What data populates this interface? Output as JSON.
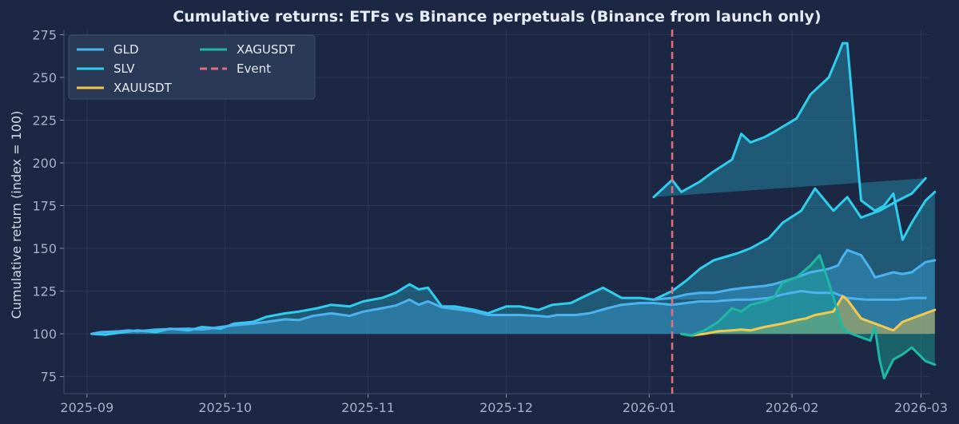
{
  "chart_data": {
    "type": "line",
    "title": "Cumulative returns: ETFs vs Binance perpetuals (Binance from launch only)",
    "xlabel": "",
    "ylabel": "Cumulative return (index = 100)",
    "x_ticks": [
      "2025-09",
      "2025-10",
      "2025-11",
      "2025-12",
      "2026-01",
      "2026-02",
      "2026-03"
    ],
    "y_ticks": [
      75,
      100,
      125,
      150,
      175,
      200,
      225,
      250,
      275
    ],
    "xlim": [
      "2025-08-27",
      "2026-03-03"
    ],
    "ylim": [
      65,
      278
    ],
    "baseline": 100,
    "grid": true,
    "legend_position": "top-left",
    "event": {
      "name": "Event",
      "date": "2026-01-06",
      "color": "#e36d7b"
    },
    "series": [
      {
        "name": "GLD",
        "color": "#4bb3f0",
        "points": [
          [
            "2025-09-02",
            100
          ],
          [
            "2025-09-04",
            101
          ],
          [
            "2025-09-08",
            101.5
          ],
          [
            "2025-09-10",
            102
          ],
          [
            "2025-09-12",
            101.5
          ],
          [
            "2025-09-16",
            102.5
          ],
          [
            "2025-09-19",
            102.8
          ],
          [
            "2025-09-23",
            103
          ],
          [
            "2025-09-26",
            102.5
          ],
          [
            "2025-09-30",
            104
          ],
          [
            "2025-10-03",
            105
          ],
          [
            "2025-10-07",
            106
          ],
          [
            "2025-10-10",
            107
          ],
          [
            "2025-10-14",
            108.5
          ],
          [
            "2025-10-17",
            108
          ],
          [
            "2025-10-20",
            110.5
          ],
          [
            "2025-10-24",
            112
          ],
          [
            "2025-10-28",
            110.5
          ],
          [
            "2025-10-31",
            113
          ],
          [
            "2025-11-04",
            115
          ],
          [
            "2025-11-07",
            116.5
          ],
          [
            "2025-11-10",
            120
          ],
          [
            "2025-11-12",
            117
          ],
          [
            "2025-11-14",
            119
          ],
          [
            "2025-11-17",
            115.5
          ],
          [
            "2025-11-20",
            114.5
          ],
          [
            "2025-11-24",
            113
          ],
          [
            "2025-11-27",
            111
          ],
          [
            "2025-12-01",
            111
          ],
          [
            "2025-12-04",
            111
          ],
          [
            "2025-12-08",
            110.5
          ],
          [
            "2025-12-10",
            110
          ],
          [
            "2025-12-12",
            111
          ],
          [
            "2025-12-16",
            111
          ],
          [
            "2025-12-19",
            112
          ],
          [
            "2025-12-23",
            115
          ],
          [
            "2025-12-26",
            117
          ],
          [
            "2025-12-30",
            118
          ],
          [
            "2026-01-02",
            118
          ],
          [
            "2026-01-06",
            117
          ],
          [
            "2026-01-09",
            118
          ],
          [
            "2026-01-12",
            119
          ],
          [
            "2026-01-15",
            119
          ],
          [
            "2026-01-20",
            120
          ],
          [
            "2026-01-23",
            120
          ],
          [
            "2026-01-27",
            121
          ],
          [
            "2026-01-30",
            123
          ],
          [
            "2026-02-03",
            125
          ],
          [
            "2026-02-06",
            124
          ],
          [
            "2026-02-10",
            124
          ],
          [
            "2026-02-13",
            121
          ],
          [
            "2026-02-17",
            120
          ],
          [
            "2026-02-20",
            120
          ],
          [
            "2026-02-24",
            120
          ],
          [
            "2026-02-27",
            121
          ],
          [
            "2026-03-02",
            121
          ]
        ],
        "overlay_points": [
          [
            "2026-01-02",
            120
          ],
          [
            "2026-01-06",
            121
          ],
          [
            "2026-01-09",
            123
          ],
          [
            "2026-01-12",
            124
          ],
          [
            "2026-01-15",
            124
          ],
          [
            "2026-01-19",
            126
          ],
          [
            "2026-01-22",
            127
          ],
          [
            "2026-01-26",
            128
          ],
          [
            "2026-01-28",
            129
          ],
          [
            "2026-02-02",
            133
          ],
          [
            "2026-02-05",
            136
          ],
          [
            "2026-02-09",
            138
          ],
          [
            "2026-02-11",
            140
          ],
          [
            "2026-02-12",
            145
          ],
          [
            "2026-02-13",
            149
          ],
          [
            "2026-02-16",
            146
          ],
          [
            "2026-02-18",
            138
          ],
          [
            "2026-02-19",
            133
          ],
          [
            "2026-02-23",
            136
          ],
          [
            "2026-02-25",
            135
          ],
          [
            "2026-02-27",
            136
          ],
          [
            "2026-03-02",
            142
          ],
          [
            "2026-03-04",
            143
          ]
        ]
      },
      {
        "name": "SLV",
        "color": "#2ecfee",
        "points": [
          [
            "2025-09-02",
            100
          ],
          [
            "2025-09-05",
            99.5
          ],
          [
            "2025-09-09",
            101
          ],
          [
            "2025-09-12",
            102
          ],
          [
            "2025-09-16",
            101
          ],
          [
            "2025-09-19",
            103
          ],
          [
            "2025-09-23",
            102
          ],
          [
            "2025-09-26",
            104
          ],
          [
            "2025-09-30",
            103
          ],
          [
            "2025-10-03",
            106
          ],
          [
            "2025-10-07",
            107
          ],
          [
            "2025-10-10",
            110
          ],
          [
            "2025-10-14",
            112
          ],
          [
            "2025-10-17",
            113
          ],
          [
            "2025-10-21",
            115
          ],
          [
            "2025-10-24",
            117
          ],
          [
            "2025-10-28",
            116
          ],
          [
            "2025-10-31",
            119
          ],
          [
            "2025-11-04",
            121
          ],
          [
            "2025-11-07",
            124
          ],
          [
            "2025-11-10",
            129
          ],
          [
            "2025-11-12",
            126
          ],
          [
            "2025-11-14",
            127
          ],
          [
            "2025-11-17",
            116
          ],
          [
            "2025-11-20",
            116
          ],
          [
            "2025-11-24",
            114
          ],
          [
            "2025-11-27",
            112
          ],
          [
            "2025-12-01",
            116
          ],
          [
            "2025-12-04",
            116
          ],
          [
            "2025-12-08",
            114
          ],
          [
            "2025-12-11",
            117
          ],
          [
            "2025-12-15",
            118
          ],
          [
            "2025-12-18",
            122
          ],
          [
            "2025-12-22",
            127
          ],
          [
            "2025-12-26",
            121
          ],
          [
            "2025-12-30",
            121
          ],
          [
            "2026-01-02",
            120
          ],
          [
            "2026-01-06",
            125
          ],
          [
            "2026-01-09",
            131
          ],
          [
            "2026-01-12",
            138
          ],
          [
            "2026-01-15",
            143
          ],
          [
            "2026-01-20",
            147
          ],
          [
            "2026-01-23",
            150
          ],
          [
            "2026-01-27",
            156
          ],
          [
            "2026-01-30",
            165
          ],
          [
            "2026-02-03",
            172
          ],
          [
            "2026-02-06",
            185
          ],
          [
            "2026-02-10",
            172
          ],
          [
            "2026-02-13",
            180
          ],
          [
            "2026-02-16",
            168
          ],
          [
            "2026-02-20",
            172
          ],
          [
            "2026-02-24",
            178
          ],
          [
            "2026-02-27",
            182
          ],
          [
            "2026-03-02",
            191
          ]
        ],
        "overlay_points": [
          [
            "2026-01-02",
            180
          ],
          [
            "2026-01-06",
            190
          ],
          [
            "2026-01-08",
            183
          ],
          [
            "2026-01-12",
            189
          ],
          [
            "2026-01-15",
            195
          ],
          [
            "2026-01-19",
            202
          ],
          [
            "2026-01-21",
            217
          ],
          [
            "2026-01-23",
            212
          ],
          [
            "2026-01-26",
            215
          ],
          [
            "2026-01-28",
            218
          ],
          [
            "2026-02-02",
            226
          ],
          [
            "2026-02-05",
            240
          ],
          [
            "2026-02-09",
            250
          ],
          [
            "2026-02-11",
            263
          ],
          [
            "2026-02-12",
            270
          ],
          [
            "2026-02-13",
            270
          ],
          [
            "2026-02-16",
            178
          ],
          [
            "2026-02-19",
            172
          ],
          [
            "2026-02-21",
            175
          ],
          [
            "2026-02-23",
            182
          ],
          [
            "2026-02-25",
            155
          ],
          [
            "2026-02-27",
            165
          ],
          [
            "2026-03-02",
            178
          ],
          [
            "2026-03-04",
            183
          ]
        ]
      },
      {
        "name": "XAUUSDT",
        "color": "#f2c94c",
        "points": [
          [
            "2026-01-08",
            100
          ],
          [
            "2026-01-10",
            99
          ],
          [
            "2026-01-13",
            100
          ],
          [
            "2026-01-16",
            101.5
          ],
          [
            "2026-01-19",
            102
          ],
          [
            "2026-01-21",
            102.5
          ],
          [
            "2026-01-23",
            102
          ],
          [
            "2026-01-26",
            104
          ],
          [
            "2026-01-28",
            105
          ],
          [
            "2026-01-30",
            106
          ],
          [
            "2026-02-02",
            108
          ],
          [
            "2026-02-04",
            109
          ],
          [
            "2026-02-06",
            111
          ],
          [
            "2026-02-08",
            112
          ],
          [
            "2026-02-10",
            113
          ],
          [
            "2026-02-12",
            122
          ],
          [
            "2026-02-13",
            120
          ],
          [
            "2026-02-16",
            109
          ],
          [
            "2026-02-18",
            107
          ],
          [
            "2026-02-19",
            106
          ],
          [
            "2026-02-21",
            104
          ],
          [
            "2026-02-23",
            102
          ],
          [
            "2026-02-25",
            107
          ],
          [
            "2026-02-27",
            109
          ],
          [
            "2026-03-02",
            112
          ],
          [
            "2026-03-04",
            114
          ]
        ]
      },
      {
        "name": "XAGUSDT",
        "color": "#1fb8a4",
        "points": [
          [
            "2026-01-08",
            100
          ],
          [
            "2026-01-10",
            99
          ],
          [
            "2026-01-13",
            102
          ],
          [
            "2026-01-16",
            107
          ],
          [
            "2026-01-19",
            115
          ],
          [
            "2026-01-21",
            113
          ],
          [
            "2026-01-23",
            117
          ],
          [
            "2026-01-26",
            119
          ],
          [
            "2026-01-28",
            121
          ],
          [
            "2026-01-30",
            130
          ],
          [
            "2026-02-02",
            133
          ],
          [
            "2026-02-05",
            140
          ],
          [
            "2026-02-07",
            146
          ],
          [
            "2026-02-09",
            130
          ],
          [
            "2026-02-12",
            104
          ],
          [
            "2026-02-13",
            101
          ],
          [
            "2026-02-16",
            98
          ],
          [
            "2026-02-18",
            96
          ],
          [
            "2026-02-19",
            104
          ],
          [
            "2026-02-20",
            85
          ],
          [
            "2026-02-21",
            74
          ],
          [
            "2026-02-23",
            85
          ],
          [
            "2026-02-25",
            88
          ],
          [
            "2026-02-27",
            92
          ],
          [
            "2026-03-02",
            84
          ],
          [
            "2026-03-04",
            82
          ]
        ]
      }
    ]
  }
}
